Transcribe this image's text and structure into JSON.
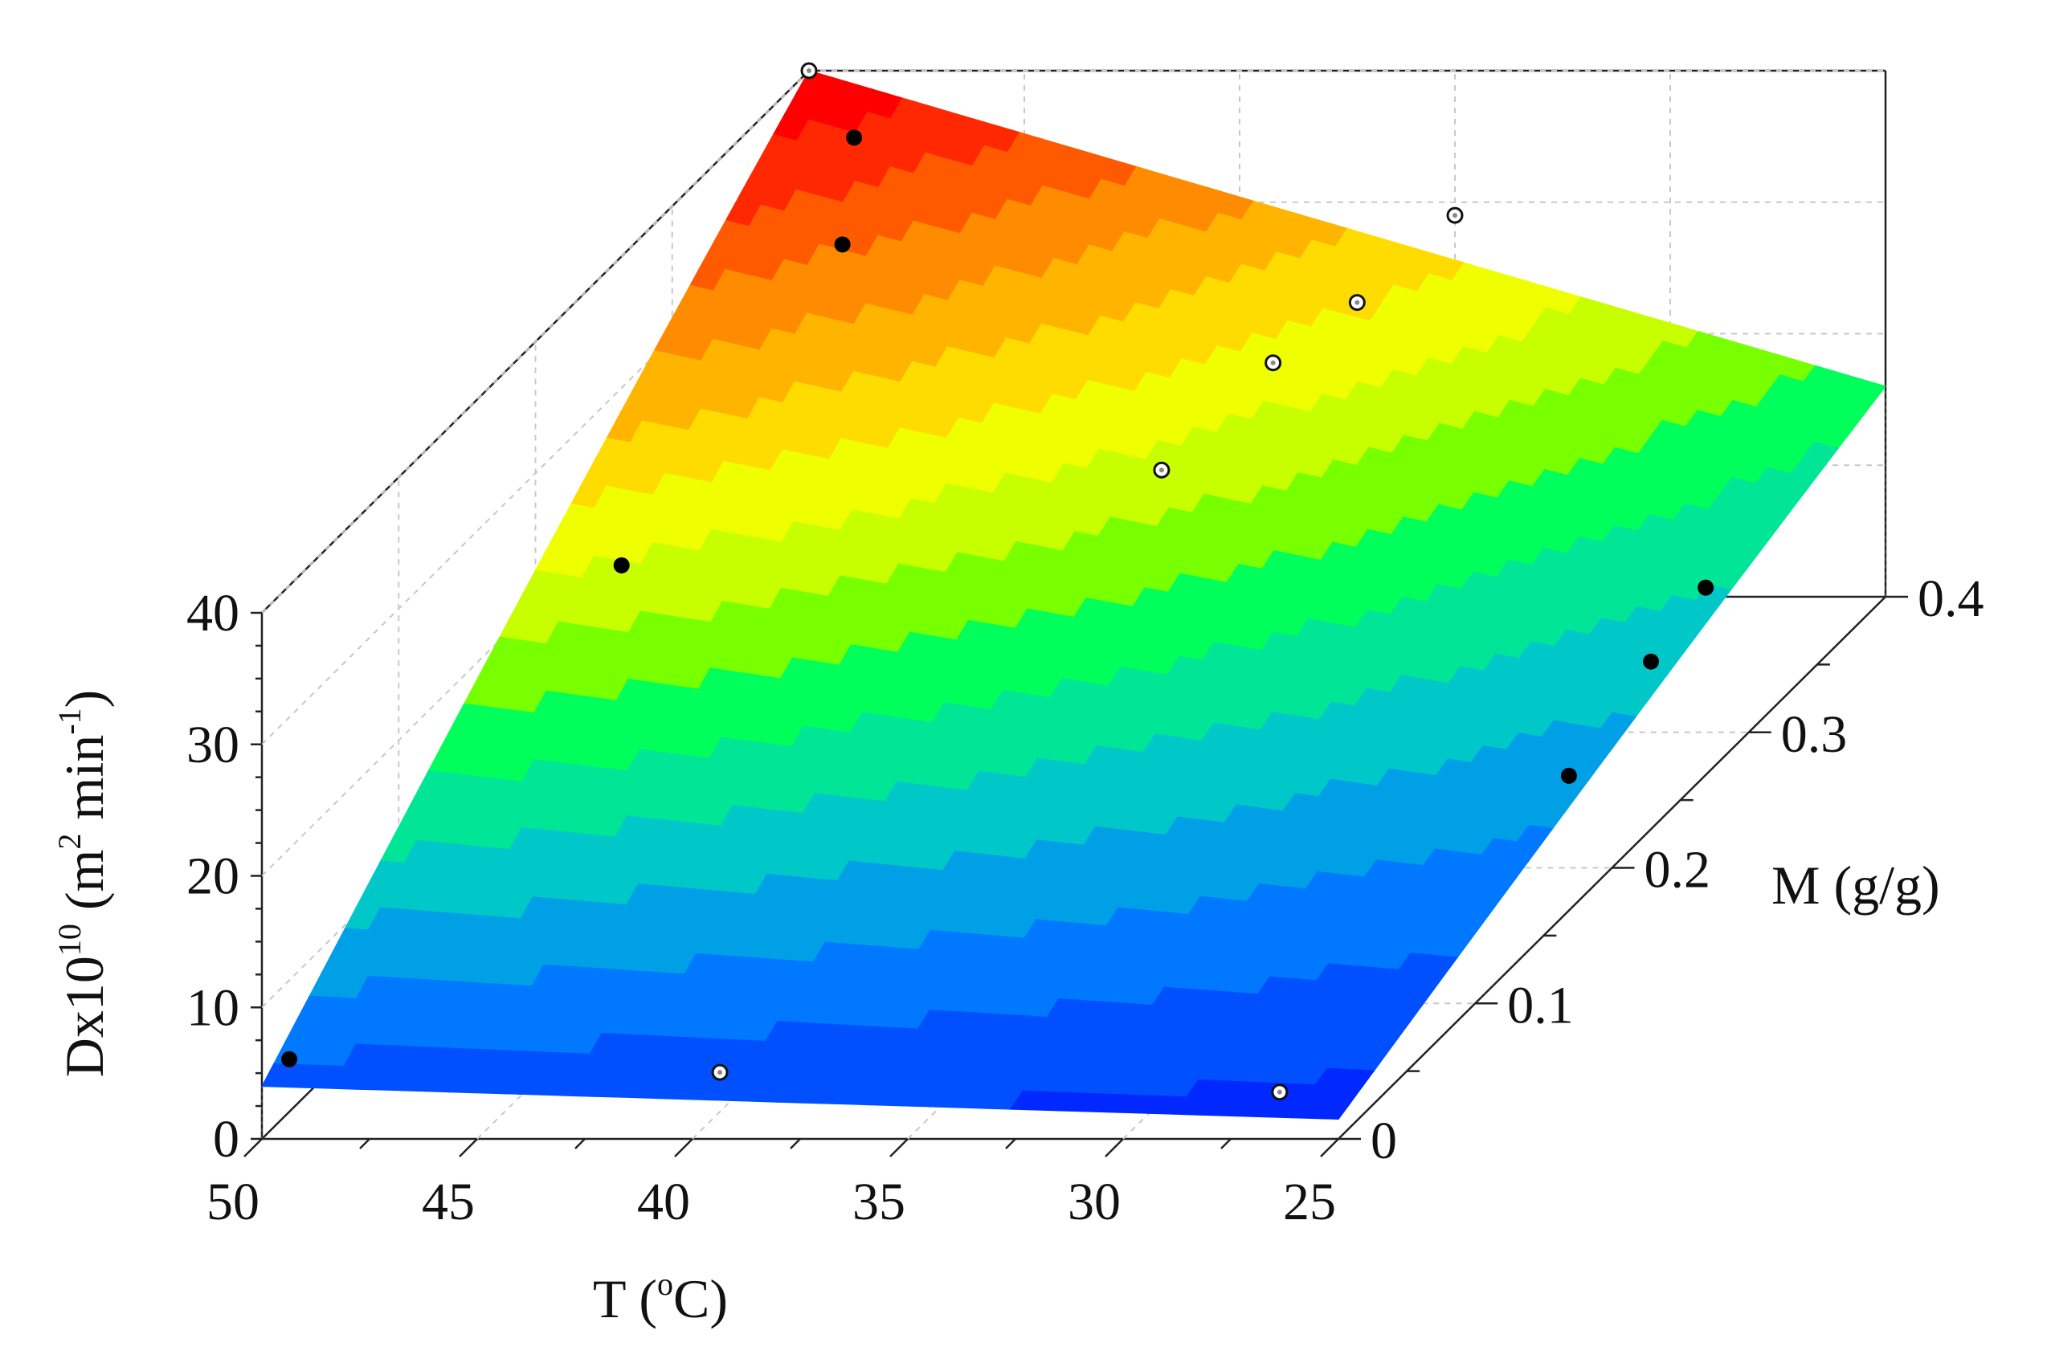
{
  "chart_data": {
    "type": "surface3d",
    "axes": {
      "x": {
        "title_main": "T (",
        "title_sup": "o",
        "title_end": "C)",
        "range": [
          25,
          50
        ],
        "ticks": [
          50,
          45,
          40,
          35,
          30,
          25
        ],
        "tick_labels": [
          "50",
          "45",
          "40",
          "35",
          "30",
          "25"
        ],
        "reversed": true
      },
      "y": {
        "title": "M (g/g)",
        "range": [
          0,
          0.4
        ],
        "ticks": [
          0,
          0.1,
          0.2,
          0.3,
          0.4
        ],
        "tick_labels": [
          "0",
          "0.1",
          "0.2",
          "0.3",
          "0.4"
        ]
      },
      "z": {
        "title_main": "Dx10",
        "title_sup1": "10",
        "title_rest": " (m",
        "title_sup2": "2",
        "title_mid": " min",
        "title_sup3": "-1",
        "title_end": ")",
        "range": [
          0,
          40
        ],
        "ticks": [
          0,
          10,
          20,
          30,
          40
        ],
        "tick_labels": [
          "0",
          "10",
          "20",
          "30",
          "40"
        ]
      }
    },
    "grid": true,
    "colormap": [
      "#0028ff",
      "#0050ff",
      "#0078ff",
      "#00a0e6",
      "#00c8c8",
      "#00e696",
      "#00ff5a",
      "#78ff00",
      "#c8ff00",
      "#f0ff00",
      "#ffdc00",
      "#ffb400",
      "#ff8c00",
      "#ff5a00",
      "#ff2800",
      "#ff0000"
    ],
    "surface_corners": [
      {
        "T": 50,
        "M": 0,
        "D": 4
      },
      {
        "T": 25,
        "M": 0,
        "D": 1.5
      },
      {
        "T": 50,
        "M": 0.4,
        "D": 40
      },
      {
        "T": 25,
        "M": 0.4,
        "D": 16
      }
    ],
    "points_filled": [
      {
        "T": 50,
        "M": 0.02,
        "D": 4
      },
      {
        "T": 48,
        "M": 0.2,
        "D": 23
      },
      {
        "T": 47,
        "M": 0.33,
        "D": 34
      },
      {
        "T": 48,
        "M": 0.37,
        "D": 38
      },
      {
        "T": 26,
        "M": 0.2,
        "D": 7
      },
      {
        "T": 26,
        "M": 0.26,
        "D": 9.5
      },
      {
        "T": 26,
        "M": 0.3,
        "D": 11
      }
    ],
    "points_open": [
      {
        "T": 50,
        "M": 0.4,
        "D": 40
      },
      {
        "T": 40,
        "M": 0.02,
        "D": 3
      },
      {
        "T": 27,
        "M": 0.02,
        "D": 1.5
      },
      {
        "T": 38,
        "M": 0.28,
        "D": 22
      },
      {
        "T": 37,
        "M": 0.33,
        "D": 25
      },
      {
        "T": 36,
        "M": 0.36,
        "D": 26.5
      },
      {
        "T": 35,
        "M": 0.4,
        "D": 29
      }
    ]
  }
}
